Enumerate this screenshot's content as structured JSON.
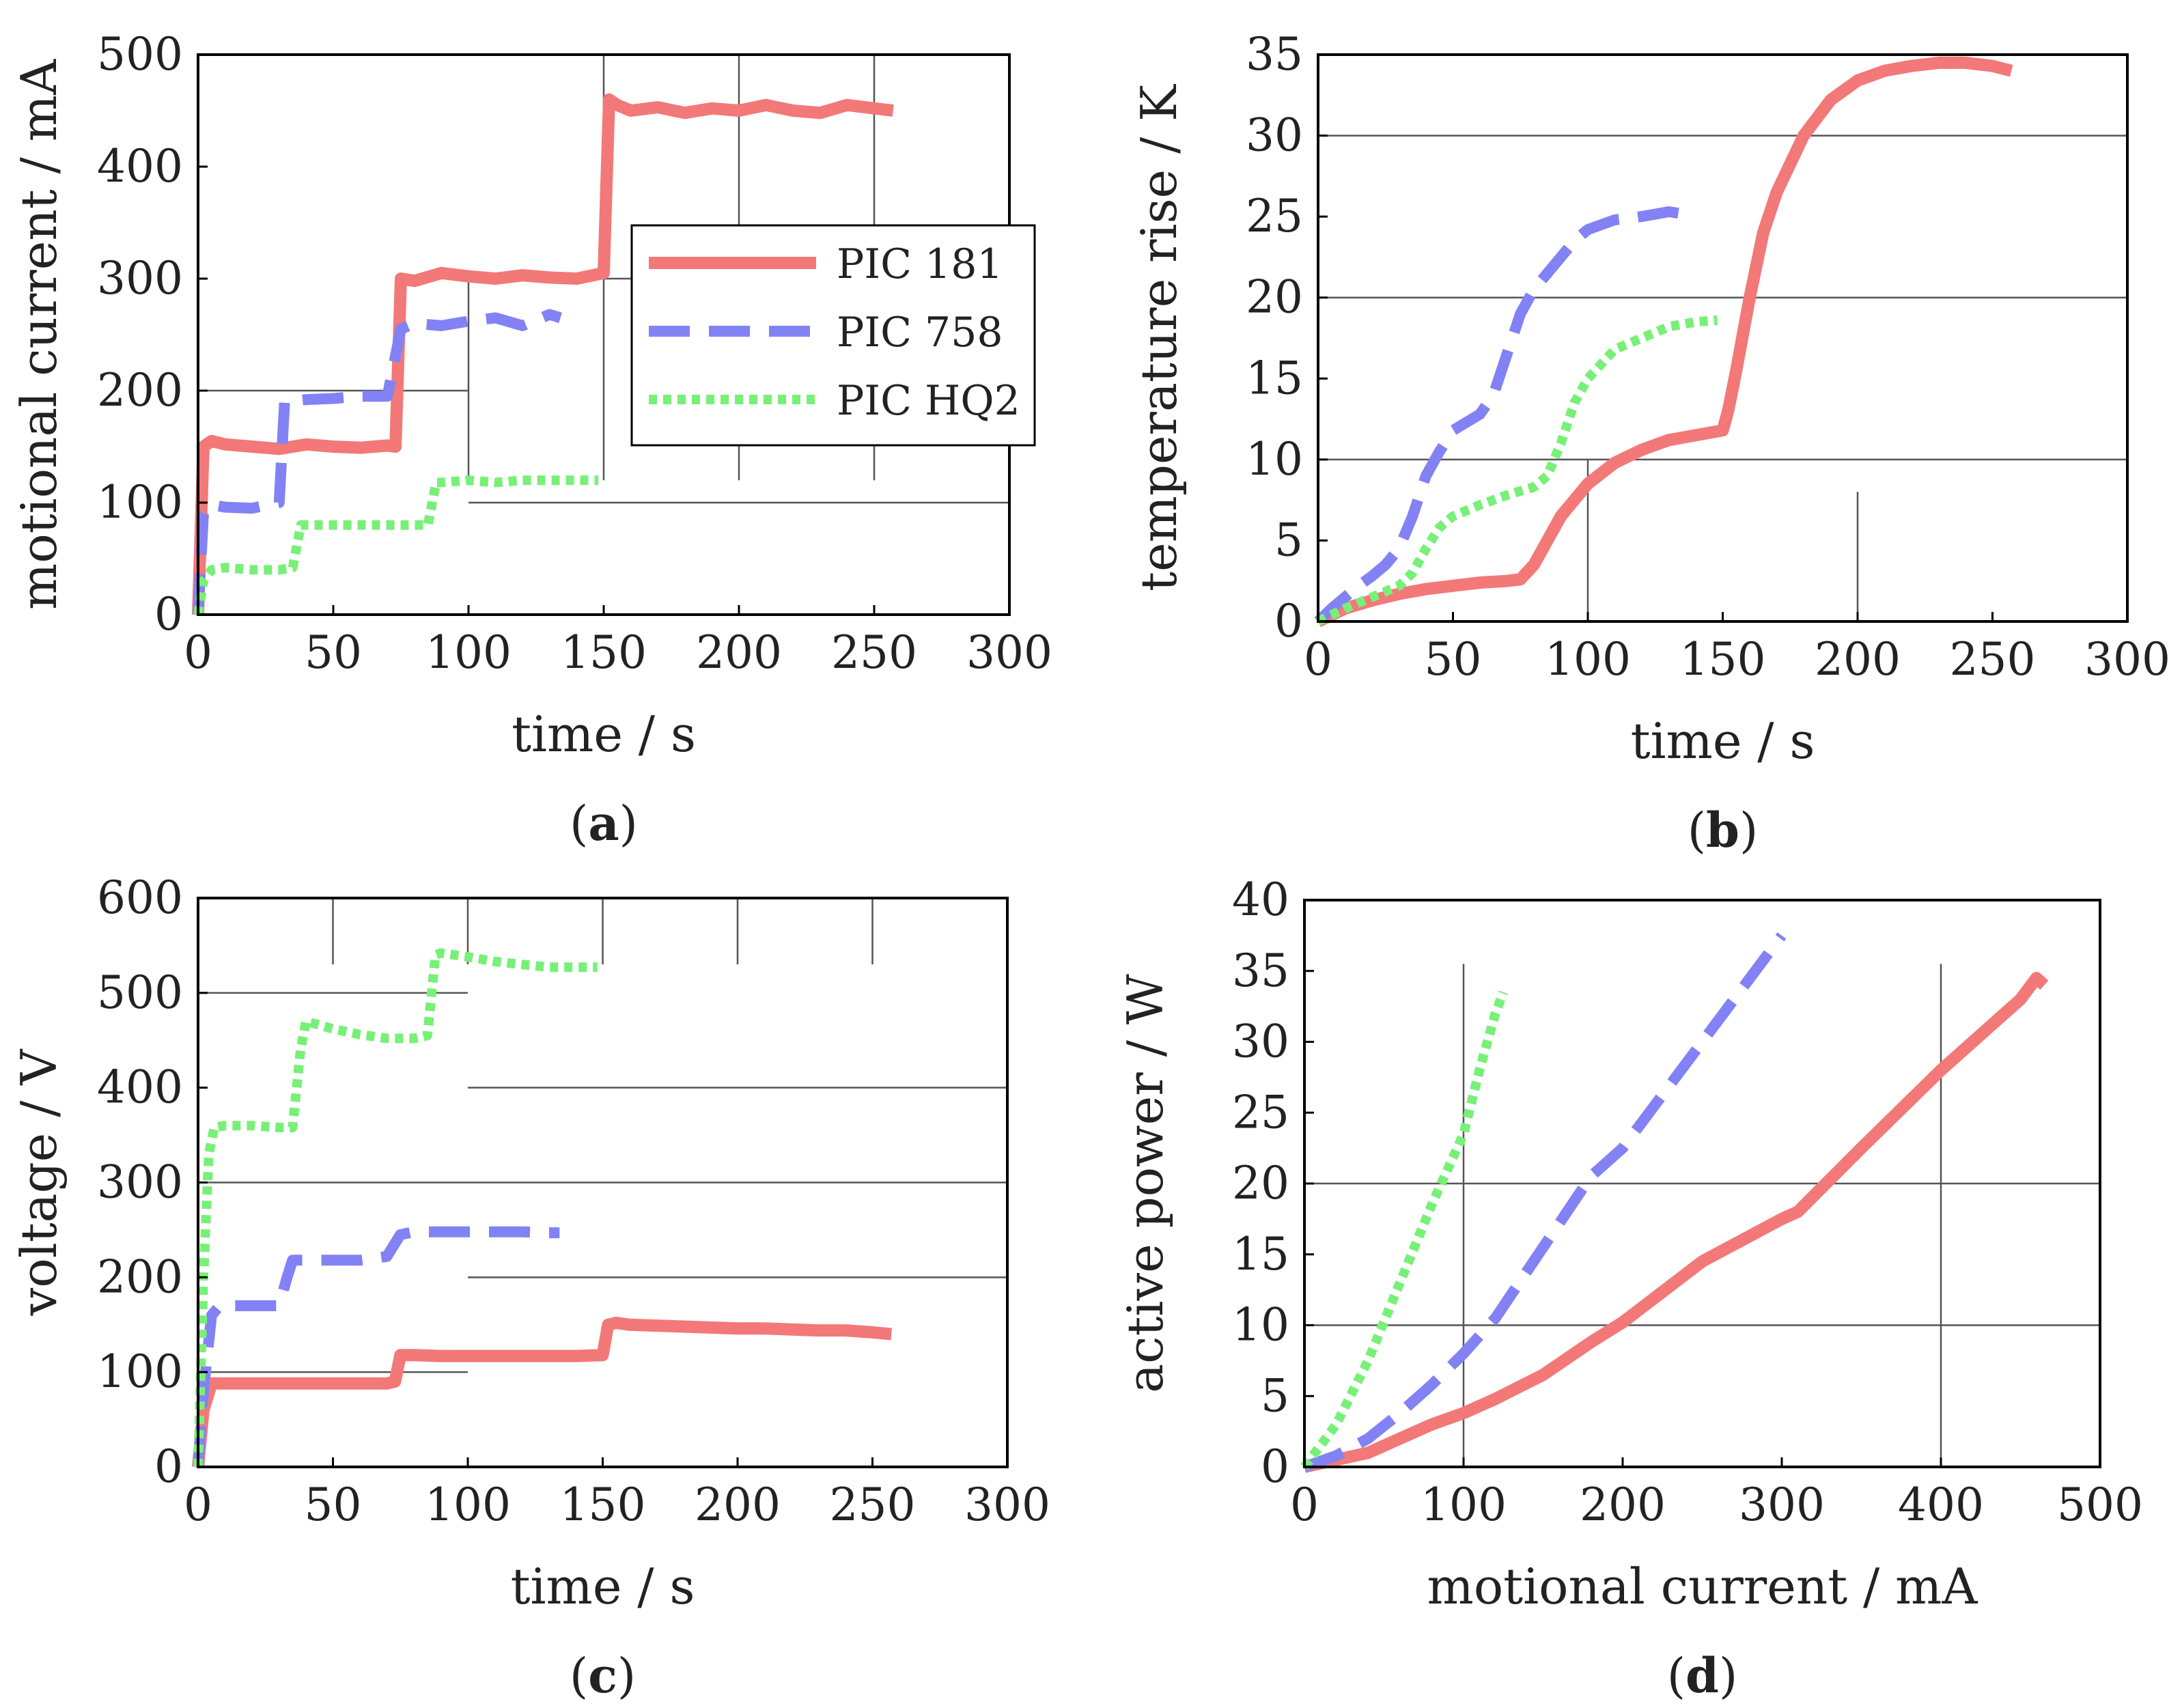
{
  "figure": {
    "series_styles": [
      {
        "name": "PIC 181",
        "color": "#f37878",
        "dash": "solid"
      },
      {
        "name": "PIC 758",
        "color": "#8282f5",
        "dash": "dashed"
      },
      {
        "name": "PIC HQ2",
        "color": "#78f078",
        "dash": "dotted"
      }
    ]
  },
  "chart_data": [
    {
      "id": "a",
      "type": "line",
      "panel_label": "a",
      "xlabel": "time / s",
      "ylabel": "motional current / mA",
      "xlim": [
        0,
        300
      ],
      "ylim": [
        0,
        500
      ],
      "xticks": [
        0,
        50,
        100,
        150,
        200,
        250,
        300
      ],
      "yticks": [
        0,
        100,
        200,
        300,
        400,
        500
      ],
      "legend": {
        "position": "center-right",
        "entries": [
          "PIC 181",
          "PIC 758",
          "PIC HQ2"
        ]
      },
      "series": [
        {
          "name": "PIC 181",
          "x": [
            0,
            2,
            5,
            10,
            20,
            30,
            40,
            50,
            60,
            70,
            73,
            75,
            80,
            90,
            100,
            110,
            120,
            130,
            140,
            150,
            152,
            155,
            160,
            170,
            180,
            190,
            200,
            210,
            220,
            230,
            240,
            250,
            257
          ],
          "y": [
            0,
            150,
            155,
            152,
            150,
            148,
            152,
            150,
            149,
            151,
            150,
            300,
            298,
            305,
            302,
            300,
            303,
            301,
            300,
            305,
            460,
            455,
            450,
            453,
            448,
            452,
            450,
            455,
            450,
            448,
            455,
            452,
            450
          ]
        },
        {
          "name": "PIC 758",
          "x": [
            0,
            2,
            5,
            10,
            20,
            30,
            32,
            40,
            50,
            60,
            70,
            75,
            80,
            90,
            100,
            110,
            120,
            130,
            134
          ],
          "y": [
            0,
            90,
            98,
            96,
            95,
            100,
            190,
            192,
            193,
            195,
            195,
            255,
            260,
            258,
            262,
            265,
            258,
            268,
            265
          ]
        },
        {
          "name": "PIC HQ2",
          "x": [
            0,
            2,
            5,
            10,
            20,
            30,
            35,
            38,
            40,
            50,
            60,
            70,
            80,
            85,
            88,
            90,
            100,
            110,
            120,
            130,
            140,
            148
          ],
          "y": [
            0,
            30,
            40,
            42,
            40,
            40,
            42,
            80,
            80,
            80,
            80,
            80,
            80,
            80,
            118,
            118,
            120,
            118,
            120,
            120,
            120,
            120
          ]
        }
      ]
    },
    {
      "id": "b",
      "type": "line",
      "panel_label": "b",
      "xlabel": "time / s",
      "ylabel": "temperature rise / K",
      "xlim": [
        0,
        300
      ],
      "ylim": [
        0,
        35
      ],
      "xticks": [
        0,
        50,
        100,
        150,
        200,
        250,
        300
      ],
      "yticks": [
        0,
        5,
        10,
        15,
        20,
        25,
        30,
        35
      ],
      "series": [
        {
          "name": "PIC 181",
          "x": [
            0,
            10,
            20,
            30,
            40,
            50,
            60,
            70,
            75,
            80,
            85,
            90,
            95,
            100,
            110,
            120,
            130,
            140,
            150,
            152,
            155,
            160,
            165,
            170,
            180,
            190,
            200,
            210,
            220,
            230,
            240,
            250,
            257
          ],
          "y": [
            0,
            0.8,
            1.3,
            1.7,
            2.0,
            2.2,
            2.4,
            2.5,
            2.6,
            3.5,
            5.0,
            6.5,
            7.5,
            8.5,
            9.8,
            10.6,
            11.2,
            11.5,
            11.8,
            13.0,
            15.5,
            20.0,
            24.0,
            26.5,
            30.0,
            32.2,
            33.4,
            34.0,
            34.3,
            34.5,
            34.5,
            34.3,
            34.0
          ]
        },
        {
          "name": "PIC 758",
          "x": [
            0,
            5,
            10,
            15,
            20,
            25,
            30,
            35,
            40,
            45,
            50,
            55,
            60,
            65,
            70,
            75,
            80,
            85,
            90,
            95,
            100,
            110,
            120,
            130,
            134
          ],
          "y": [
            0,
            0.8,
            1.5,
            2.2,
            2.8,
            3.5,
            4.5,
            6.5,
            9.0,
            10.5,
            11.8,
            12.3,
            12.8,
            14.0,
            16.5,
            19.0,
            20.5,
            21.5,
            22.5,
            23.5,
            24.2,
            24.8,
            25.0,
            25.3,
            25.2
          ]
        },
        {
          "name": "PIC HQ2",
          "x": [
            0,
            10,
            20,
            30,
            35,
            40,
            45,
            50,
            60,
            70,
            80,
            85,
            90,
            95,
            100,
            110,
            120,
            130,
            140,
            148
          ],
          "y": [
            0,
            0.8,
            1.5,
            2.2,
            3.0,
            4.5,
            5.8,
            6.5,
            7.2,
            7.8,
            8.3,
            9.0,
            11.0,
            13.5,
            15.0,
            16.8,
            17.5,
            18.2,
            18.5,
            18.6
          ]
        }
      ]
    },
    {
      "id": "c",
      "type": "line",
      "panel_label": "c",
      "xlabel": "time / s",
      "ylabel": "voltage / V",
      "xlim": [
        0,
        300
      ],
      "ylim": [
        0,
        600
      ],
      "xticks": [
        0,
        50,
        100,
        150,
        200,
        250,
        300
      ],
      "yticks": [
        0,
        100,
        200,
        300,
        400,
        500,
        600
      ],
      "series": [
        {
          "name": "PIC 181",
          "x": [
            0,
            2,
            5,
            10,
            20,
            30,
            40,
            50,
            60,
            70,
            73,
            75,
            80,
            90,
            100,
            110,
            120,
            130,
            140,
            150,
            152,
            155,
            160,
            170,
            180,
            190,
            200,
            210,
            220,
            230,
            240,
            250,
            257
          ],
          "y": [
            0,
            60,
            88,
            88,
            88,
            88,
            88,
            88,
            88,
            88,
            90,
            118,
            118,
            117,
            117,
            117,
            117,
            117,
            117,
            118,
            150,
            152,
            150,
            149,
            148,
            147,
            146,
            146,
            145,
            144,
            144,
            142,
            140
          ]
        },
        {
          "name": "PIC 758",
          "x": [
            0,
            2,
            5,
            8,
            10,
            15,
            20,
            25,
            30,
            33,
            35,
            40,
            50,
            60,
            70,
            75,
            80,
            90,
            100,
            110,
            120,
            130,
            134
          ],
          "y": [
            0,
            80,
            160,
            170,
            170,
            170,
            170,
            170,
            170,
            200,
            218,
            218,
            218,
            218,
            222,
            245,
            248,
            248,
            248,
            248,
            248,
            247,
            247
          ]
        },
        {
          "name": "PIC HQ2",
          "x": [
            0,
            2,
            4,
            6,
            10,
            20,
            30,
            35,
            38,
            40,
            50,
            60,
            70,
            80,
            85,
            88,
            90,
            100,
            110,
            120,
            130,
            140,
            148
          ],
          "y": [
            0,
            200,
            330,
            358,
            360,
            360,
            358,
            358,
            440,
            470,
            462,
            456,
            452,
            452,
            455,
            540,
            542,
            538,
            533,
            530,
            527,
            527,
            527
          ]
        }
      ]
    },
    {
      "id": "d",
      "type": "line",
      "panel_label": "d",
      "xlabel": "motional current / mA",
      "ylabel": "active power / W",
      "xlim": [
        0,
        500
      ],
      "ylim": [
        0,
        40
      ],
      "xticks": [
        0,
        100,
        200,
        300,
        400,
        500
      ],
      "yticks": [
        0,
        5,
        10,
        15,
        20,
        25,
        30,
        35,
        40
      ],
      "series": [
        {
          "name": "PIC 181",
          "x": [
            0,
            20,
            40,
            60,
            80,
            100,
            120,
            150,
            180,
            200,
            250,
            300,
            310,
            350,
            400,
            440,
            450,
            460,
            465
          ],
          "y": [
            0,
            0.5,
            1.0,
            2.0,
            3.0,
            3.8,
            4.8,
            6.5,
            8.8,
            10.2,
            14.5,
            17.5,
            18.0,
            22.5,
            28.0,
            32.0,
            33.0,
            34.5,
            34.0
          ]
        },
        {
          "name": "PIC 758",
          "x": [
            0,
            20,
            40,
            60,
            80,
            100,
            120,
            150,
            180,
            200,
            250,
            300
          ],
          "y": [
            0,
            0.8,
            2.0,
            3.8,
            5.8,
            8.0,
            10.5,
            15.5,
            20.5,
            22.5,
            30.0,
            37.5
          ]
        },
        {
          "name": "PIC HQ2",
          "x": [
            0,
            20,
            40,
            60,
            80,
            100,
            110,
            120,
            125
          ],
          "y": [
            0,
            3.0,
            7.5,
            13.0,
            18.5,
            23.5,
            28.0,
            32.0,
            33.5
          ]
        }
      ]
    }
  ]
}
